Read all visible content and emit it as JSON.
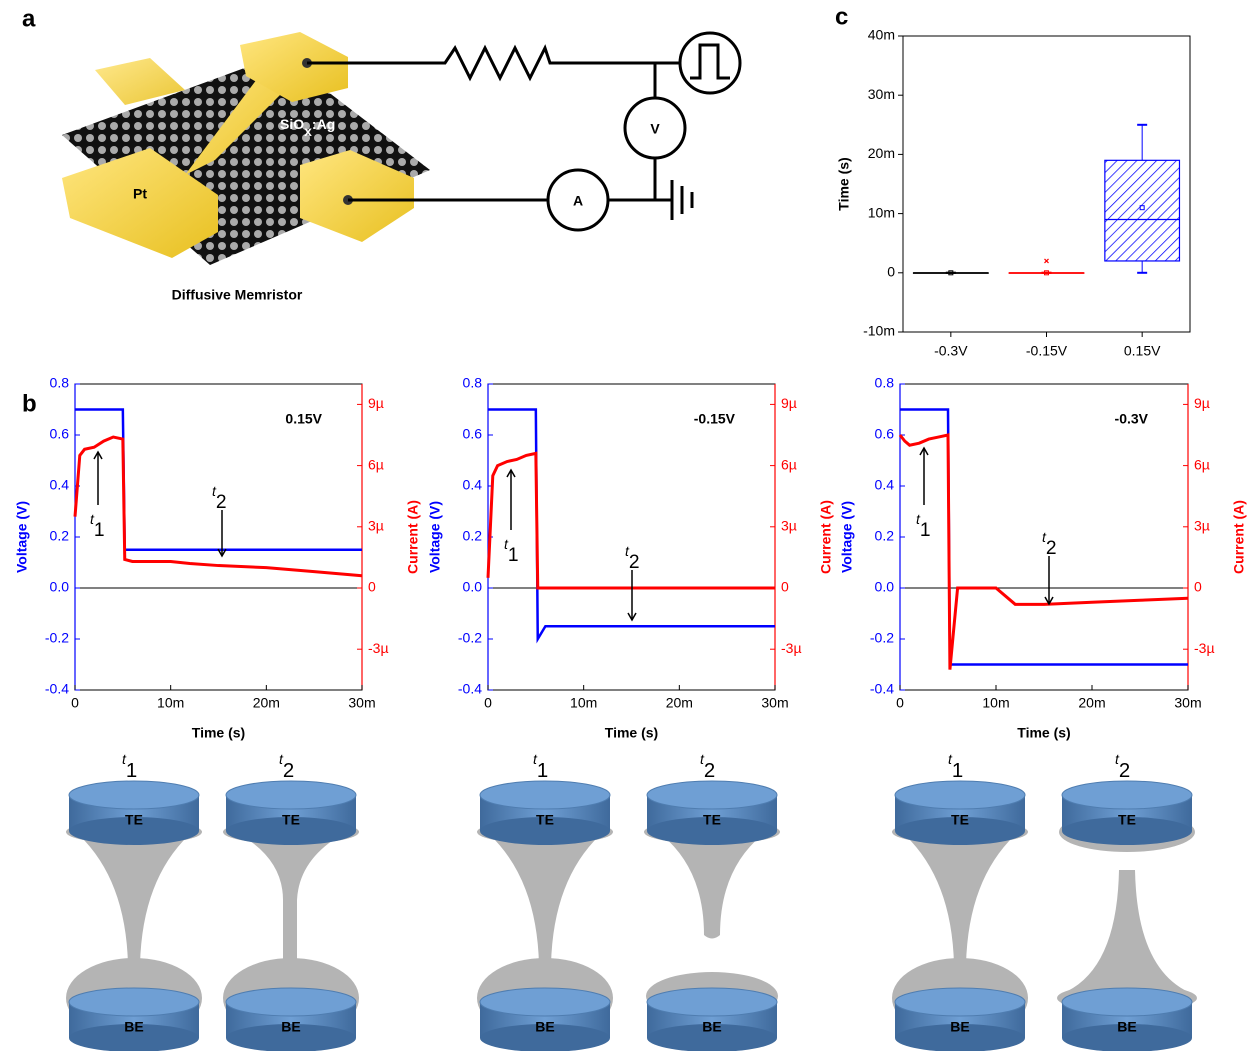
{
  "panel_labels": [
    "a",
    "b",
    "c"
  ],
  "device": {
    "title": "Diffusive Memristor",
    "electrode": "Pt",
    "layer": {
      "main": "SiO",
      "sub": "x",
      "rest": ":Ag"
    },
    "voltmeter": "V",
    "ammeter": "A"
  },
  "filaments": {
    "t": "t",
    "subs": [
      "1",
      "2"
    ],
    "top": "TE",
    "bottom": "BE"
  },
  "chart_data": [
    {
      "type": "line",
      "title": "0.15V",
      "xlabel": "Time (s)",
      "ylabel": "Voltage (V)",
      "y2label": "Current (A)",
      "x": [
        0,
        0.0005,
        0.001,
        0.002,
        0.003,
        0.004,
        0.005,
        0.0052,
        0.006,
        0.01,
        0.012,
        0.015,
        0.02,
        0.025,
        0.03
      ],
      "xlim": [
        0,
        0.03
      ],
      "xticks": [
        0,
        {
          "value": 0.01,
          "label": "10m"
        },
        {
          "value": 0.02,
          "label": "20m"
        },
        {
          "value": 0.03,
          "label": "30m"
        }
      ],
      "ylim": [
        -0.4,
        0.8
      ],
      "yticks": [
        -0.4,
        -0.2,
        {
          "value": 0,
          "label": "0.0"
        },
        0.2,
        0.4,
        0.6,
        0.8
      ],
      "y2lim": [
        -5e-06,
        1e-05
      ],
      "y2ticks": [
        {
          "value": -3e-06,
          "label": "-3µ"
        },
        0,
        {
          "value": 3e-06,
          "label": "3µ"
        },
        {
          "value": 6e-06,
          "label": "6µ"
        },
        {
          "value": 9e-06,
          "label": "9µ"
        }
      ],
      "series": [
        {
          "color": "#0000ff",
          "values": [
            0.7,
            0.7,
            0.7,
            0.7,
            0.7,
            0.7,
            0.7,
            0.15,
            0.15,
            0.15,
            0.15,
            0.15,
            0.15,
            0.15,
            0.15
          ]
        },
        {
          "color": "#ff0000",
          "axis": "y2",
          "values": [
            3.5e-06,
            6.5e-06,
            6.8e-06,
            6.9e-06,
            7.2e-06,
            7.4e-06,
            7.3e-06,
            1.4e-06,
            1.3e-06,
            1.3e-06,
            1.2e-06,
            1.1e-06,
            1e-06,
            8e-07,
            6e-07
          ]
        }
      ],
      "annotations": [
        {
          "text": "t",
          "sub": "1"
        },
        {
          "text": "t",
          "sub": "2"
        }
      ]
    },
    {
      "type": "line",
      "title": "-0.15V",
      "xlabel": "Time (s)",
      "ylabel": "Voltage (V)",
      "y2label": "Current (A)",
      "x": [
        0,
        0.0005,
        0.001,
        0.002,
        0.003,
        0.004,
        0.005,
        0.0052,
        0.006,
        0.01,
        0.012,
        0.015,
        0.02,
        0.025,
        0.03
      ],
      "xlim": [
        0,
        0.03
      ],
      "xticks": [
        0,
        {
          "value": 0.01,
          "label": "10m"
        },
        {
          "value": 0.02,
          "label": "20m"
        },
        {
          "value": 0.03,
          "label": "30m"
        }
      ],
      "ylim": [
        -0.4,
        0.8
      ],
      "yticks": [
        -0.4,
        -0.2,
        {
          "value": 0,
          "label": "0.0"
        },
        0.2,
        0.4,
        0.6,
        0.8
      ],
      "y2lim": [
        -5e-06,
        1e-05
      ],
      "y2ticks": [
        {
          "value": -3e-06,
          "label": "-3µ"
        },
        0,
        {
          "value": 3e-06,
          "label": "3µ"
        },
        {
          "value": 6e-06,
          "label": "6µ"
        },
        {
          "value": 9e-06,
          "label": "9µ"
        }
      ],
      "series": [
        {
          "color": "#0000ff",
          "values": [
            0.7,
            0.7,
            0.7,
            0.7,
            0.7,
            0.7,
            0.7,
            -0.2,
            -0.15,
            -0.15,
            -0.15,
            -0.15,
            -0.15,
            -0.15,
            -0.15
          ]
        },
        {
          "color": "#ff0000",
          "axis": "y2",
          "values": [
            5e-07,
            5.5e-06,
            6e-06,
            6.2e-06,
            6.3e-06,
            6.5e-06,
            6.6e-06,
            0,
            0,
            0,
            0,
            0,
            0,
            0,
            0
          ]
        }
      ],
      "annotations": [
        {
          "text": "t",
          "sub": "1"
        },
        {
          "text": "t",
          "sub": "2"
        }
      ]
    },
    {
      "type": "line",
      "title": "-0.3V",
      "xlabel": "Time (s)",
      "ylabel": "Voltage (V)",
      "y2label": "Current (A)",
      "x": [
        0,
        0.0005,
        0.001,
        0.002,
        0.003,
        0.004,
        0.005,
        0.0052,
        0.006,
        0.01,
        0.012,
        0.015,
        0.02,
        0.025,
        0.03
      ],
      "xlim": [
        0,
        0.03
      ],
      "xticks": [
        0,
        {
          "value": 0.01,
          "label": "10m"
        },
        {
          "value": 0.02,
          "label": "20m"
        },
        {
          "value": 0.03,
          "label": "30m"
        }
      ],
      "ylim": [
        -0.4,
        0.8
      ],
      "yticks": [
        -0.4,
        -0.2,
        {
          "value": 0,
          "label": "0.0"
        },
        0.2,
        0.4,
        0.6,
        0.8
      ],
      "y2lim": [
        -5e-06,
        1e-05
      ],
      "y2ticks": [
        {
          "value": -3e-06,
          "label": "-3µ"
        },
        0,
        {
          "value": 3e-06,
          "label": "3µ"
        },
        {
          "value": 6e-06,
          "label": "6µ"
        },
        {
          "value": 9e-06,
          "label": "9µ"
        }
      ],
      "series": [
        {
          "color": "#0000ff",
          "values": [
            0.7,
            0.7,
            0.7,
            0.7,
            0.7,
            0.7,
            0.7,
            -0.3,
            -0.3,
            -0.3,
            -0.3,
            -0.3,
            -0.3,
            -0.3,
            -0.3
          ]
        },
        {
          "color": "#ff0000",
          "axis": "y2",
          "values": [
            7.5e-06,
            7.2e-06,
            7e-06,
            7.1e-06,
            7.3e-06,
            7.4e-06,
            7.5e-06,
            -4e-06,
            0,
            0,
            -8e-07,
            -8e-07,
            -7e-07,
            -6e-07,
            -5e-07
          ]
        }
      ],
      "annotations": [
        {
          "text": "t",
          "sub": "1"
        },
        {
          "text": "t",
          "sub": "2"
        }
      ]
    },
    {
      "type": "box",
      "ylabel": "Time (s)",
      "categories": [
        "-0.3V",
        "-0.15V",
        "0.15V"
      ],
      "colors": [
        "#000000",
        "#ff0000",
        "#0000ff"
      ],
      "min": [
        0,
        0,
        0
      ],
      "q1": [
        0,
        0,
        0.002
      ],
      "median": [
        0,
        0,
        0.009
      ],
      "q3": [
        0,
        0,
        0.019
      ],
      "max": [
        0,
        0,
        0.025
      ],
      "mean": [
        0,
        0,
        0.011
      ],
      "outliers": [
        [],
        [
          0.002
        ],
        []
      ],
      "ylim": [
        -0.01,
        0.04
      ],
      "yticks": [
        {
          "value": -0.01,
          "label": "-10m"
        },
        0,
        {
          "value": 0.01,
          "label": "10m"
        },
        {
          "value": 0.02,
          "label": "20m"
        },
        {
          "value": 0.03,
          "label": "30m"
        },
        {
          "value": 0.04,
          "label": "40m"
        }
      ]
    }
  ]
}
